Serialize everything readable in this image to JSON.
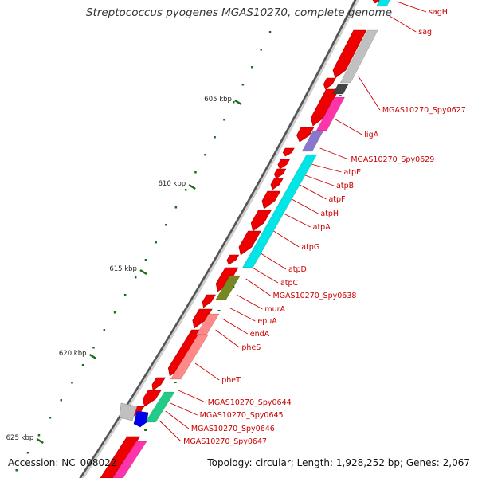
{
  "title": "Streptococcus pyogenes MGAS10270, complete genome",
  "footer": {
    "accession": "Accession: NC_008022",
    "summary": "Topology: circular; Length: 1,928,252 bp; Genes: 2,067"
  },
  "colors": {
    "backbone": "#888888",
    "label": "#cc0000",
    "leader": "#cc0000",
    "scale_tick": "#1a6b1a",
    "forward_gene": "#ee0000",
    "cog_cyan": "#00e5e5",
    "cog_pink": "#ff33aa",
    "cog_green": "#22cc88",
    "cog_salmon": "#ff8888",
    "cog_olive": "#778822",
    "cog_gray": "#c0c0c0",
    "cog_dark": "#444444",
    "cog_lavender": "#8877cc",
    "cog_blue": "#0000ee"
  },
  "scale_ticks": [
    {
      "label": "605 kbp"
    },
    {
      "label": "610 kbp"
    },
    {
      "label": "615 kbp"
    },
    {
      "label": "620 kbp"
    },
    {
      "label": "625 kbp"
    }
  ],
  "gene_labels": [
    {
      "name": "sagH"
    },
    {
      "name": "sagI"
    },
    {
      "name": "MGAS10270_Spy0627"
    },
    {
      "name": "ligA"
    },
    {
      "name": "MGAS10270_Spy0629"
    },
    {
      "name": "atpE"
    },
    {
      "name": "atpB"
    },
    {
      "name": "atpF"
    },
    {
      "name": "atpH"
    },
    {
      "name": "atpA"
    },
    {
      "name": "atpG"
    },
    {
      "name": "atpD"
    },
    {
      "name": "atpC"
    },
    {
      "name": "MGAS10270_Spy0638"
    },
    {
      "name": "murA"
    },
    {
      "name": "epuA"
    },
    {
      "name": "endA"
    },
    {
      "name": "pheS"
    },
    {
      "name": "pheT"
    },
    {
      "name": "MGAS10270_Spy0644"
    },
    {
      "name": "MGAS10270_Spy0645"
    },
    {
      "name": "MGAS10270_Spy0646"
    },
    {
      "name": "MGAS10270_Spy0647"
    }
  ]
}
